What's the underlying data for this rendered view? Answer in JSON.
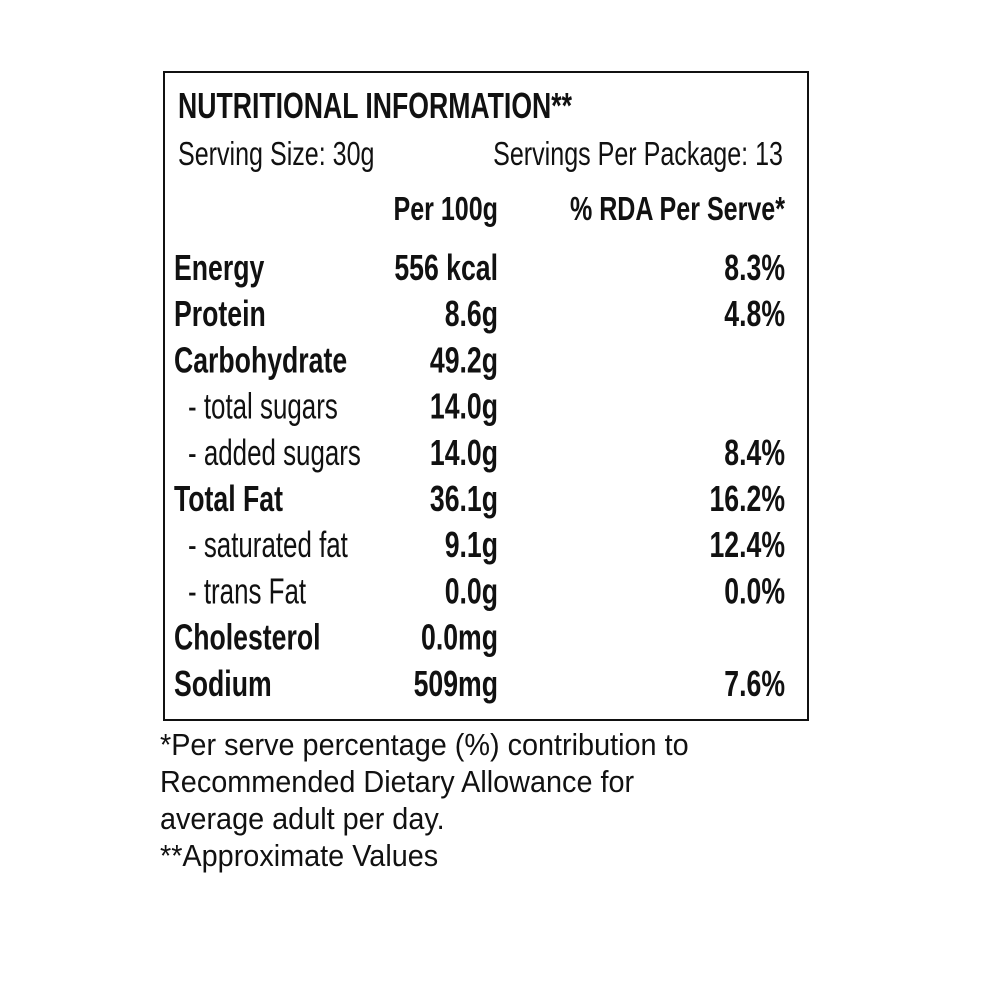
{
  "header": {
    "title": "NUTRITIONAL INFORMATION**",
    "serving_size": "Serving Size: 30g",
    "servings_per_package": "Servings Per Package: 13"
  },
  "table": {
    "columns": [
      "Per 100g",
      "% RDA Per Serve*"
    ],
    "rows": [
      {
        "label": "Energy",
        "per_100g": "556 kcal",
        "rda": "8.3%"
      },
      {
        "label": "Protein",
        "per_100g": "8.6g",
        "rda": "4.8%"
      },
      {
        "label": "Carbohydrate",
        "per_100g": "49.2g"
      },
      {
        "label": "- total sugars",
        "per_100g": "14.0g"
      },
      {
        "label": "- added sugars",
        "per_100g": "14.0g",
        "rda": "8.4%"
      },
      {
        "label": "Total Fat",
        "per_100g": "36.1g",
        "rda": "16.2%"
      },
      {
        "label": "- saturated fat",
        "per_100g": "9.1g",
        "rda": "12.4%"
      },
      {
        "label": "- trans Fat",
        "per_100g": "0.0g",
        "rda": "0.0%"
      },
      {
        "label": "Cholesterol",
        "per_100g": "0.0mg"
      },
      {
        "label": "Sodium",
        "per_100g": "509mg",
        "rda": "7.6%"
      }
    ]
  },
  "footnotes": [
    "*Per serve percentage (%) contribution to",
    "Recommended Dietary Allowance for",
    "average adult per day.",
    "**Approximate Values"
  ]
}
